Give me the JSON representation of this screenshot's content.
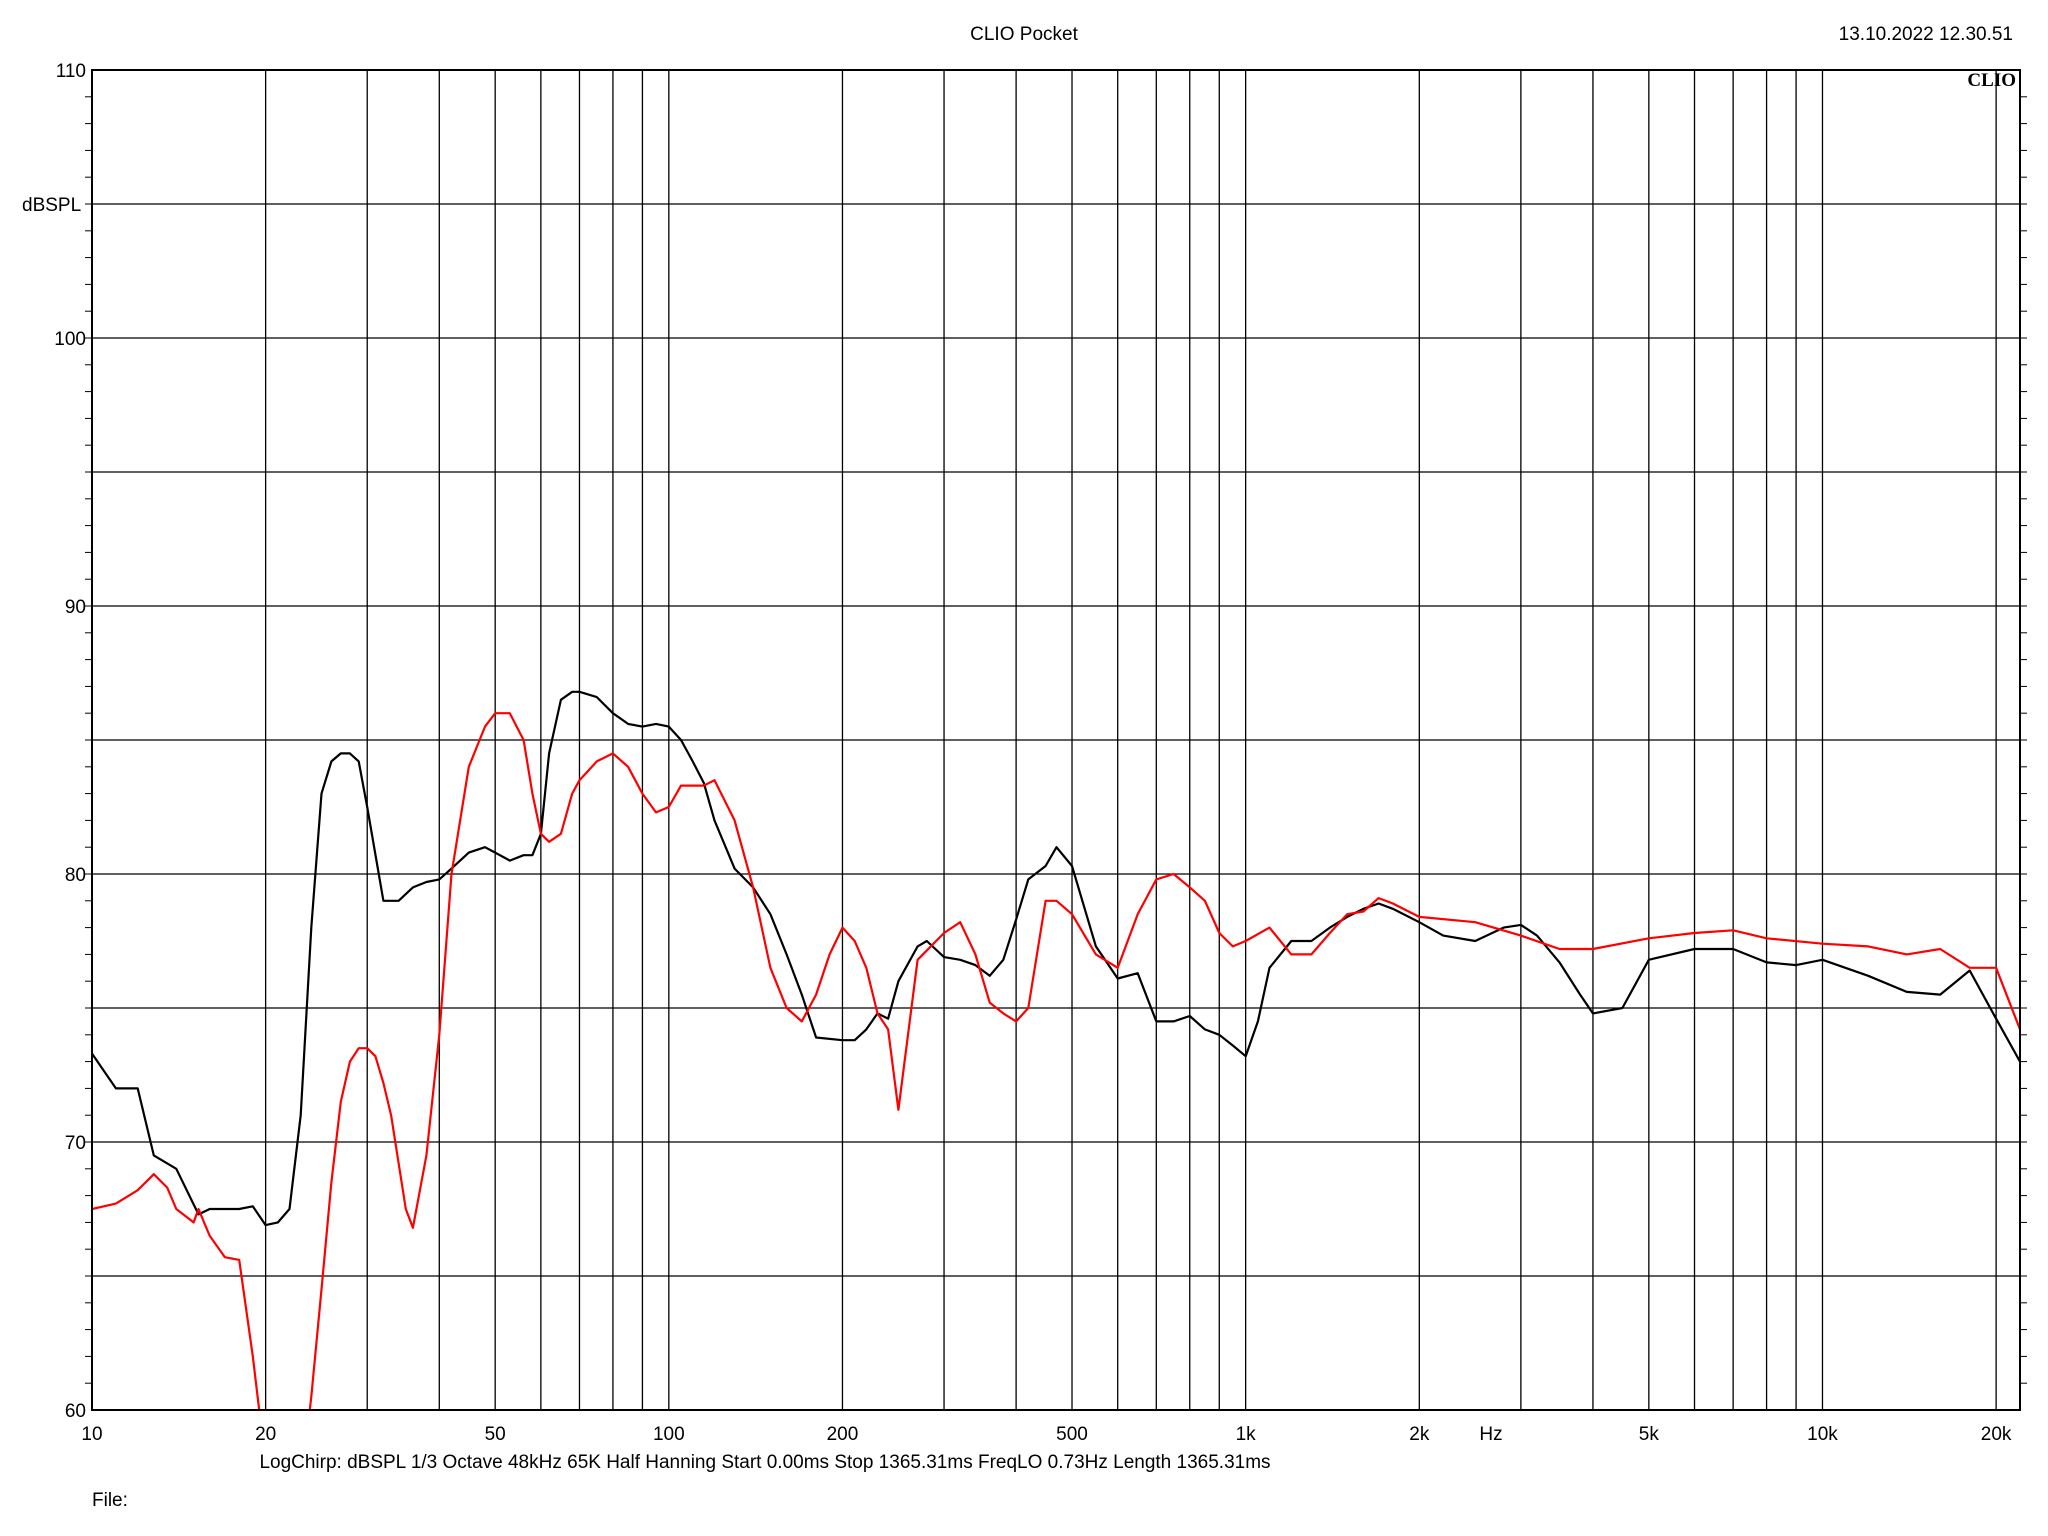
{
  "header": {
    "title": "CLIO Pocket",
    "timestamp": "13.10.2022 12.30.51",
    "brand": "CLIO"
  },
  "footer": {
    "params": "LogChirp:  dBSPL   1/3 Octave   48kHz   65K   Half Hanning   Start 0.00ms    Stop 1365.31ms    FreqLO 0.73Hz    Length 1365.31ms",
    "file_label": "File:"
  },
  "chart_data": {
    "type": "line",
    "title": "",
    "xlabel": "Hz",
    "ylabel": "dBSPL",
    "xscale": "log",
    "xlim": [
      10,
      22000
    ],
    "ylim": [
      60,
      110
    ],
    "grid": true,
    "x_ticks": [
      {
        "value": 10,
        "label": "10"
      },
      {
        "value": 20,
        "label": "20"
      },
      {
        "value": 50,
        "label": "50"
      },
      {
        "value": 100,
        "label": "100"
      },
      {
        "value": 200,
        "label": "200"
      },
      {
        "value": 500,
        "label": "500"
      },
      {
        "value": 1000,
        "label": "1k"
      },
      {
        "value": 2000,
        "label": "2k"
      },
      {
        "value": 5000,
        "label": "5k"
      },
      {
        "value": 10000,
        "label": "10k"
      },
      {
        "value": 20000,
        "label": "20k"
      }
    ],
    "y_ticks": [
      {
        "value": 60,
        "label": "60"
      },
      {
        "value": 70,
        "label": "70"
      },
      {
        "value": 80,
        "label": "80"
      },
      {
        "value": 90,
        "label": "90"
      },
      {
        "value": 100,
        "label": "100"
      },
      {
        "value": 110,
        "label": "110"
      }
    ],
    "series": [
      {
        "color": "#000000",
        "x": [
          10,
          11,
          12,
          12.8,
          14,
          15.3,
          16,
          17,
          18,
          19,
          20,
          21,
          22,
          23,
          24,
          25,
          26,
          27,
          28,
          29,
          30,
          32,
          34,
          36,
          38,
          40,
          42,
          45,
          48,
          50,
          53,
          56,
          58,
          60,
          62,
          65,
          68,
          70,
          75,
          80,
          85,
          90,
          95,
          100,
          105,
          110,
          115,
          120,
          130,
          140,
          150,
          160,
          170,
          180,
          200,
          210,
          220,
          230,
          240,
          250,
          270,
          280,
          300,
          320,
          340,
          360,
          380,
          400,
          420,
          450,
          470,
          500,
          550,
          600,
          650,
          700,
          750,
          800,
          850,
          900,
          950,
          1000,
          1050,
          1100,
          1200,
          1300,
          1400,
          1500,
          1600,
          1700,
          1800,
          2000,
          2200,
          2500,
          2800,
          3000,
          3200,
          3500,
          3800,
          4000,
          4500,
          5000,
          6000,
          7000,
          8000,
          9000,
          10000,
          12000,
          14000,
          16000,
          18000,
          20000,
          22000
        ],
        "y": [
          73.3,
          72.0,
          72.0,
          69.5,
          69.0,
          67.3,
          67.5,
          67.5,
          67.5,
          67.6,
          66.9,
          67.0,
          67.5,
          71.0,
          78.0,
          83.0,
          84.2,
          84.5,
          84.5,
          84.2,
          82.5,
          79.0,
          79.0,
          79.5,
          79.7,
          79.8,
          80.2,
          80.8,
          81.0,
          80.8,
          80.5,
          80.7,
          80.7,
          81.5,
          84.5,
          86.5,
          86.8,
          86.8,
          86.6,
          86.0,
          85.6,
          85.5,
          85.6,
          85.5,
          85.0,
          84.2,
          83.4,
          82.0,
          80.2,
          79.5,
          78.5,
          77.0,
          75.5,
          73.9,
          73.8,
          73.8,
          74.2,
          74.8,
          74.6,
          76.0,
          77.3,
          77.5,
          76.9,
          76.8,
          76.6,
          76.2,
          76.8,
          78.3,
          79.8,
          80.3,
          81.0,
          80.3,
          77.3,
          76.1,
          76.3,
          74.5,
          74.5,
          74.7,
          74.2,
          74.0,
          73.6,
          73.2,
          74.5,
          76.5,
          77.5,
          77.5,
          78.0,
          78.4,
          78.7,
          78.9,
          78.7,
          78.2,
          77.7,
          77.5,
          78.0,
          78.1,
          77.7,
          76.7,
          75.5,
          74.8,
          75.0,
          76.8,
          77.2,
          77.2,
          76.7,
          76.6,
          76.8,
          76.2,
          75.6,
          75.5,
          76.4,
          74.6,
          73.0
        ]
      },
      {
        "color": "#ff0000",
        "x": [
          10,
          11,
          12,
          12.8,
          13.5,
          14,
          15,
          15.3,
          16,
          17,
          18,
          19,
          20,
          21,
          22,
          23,
          24,
          25,
          26,
          27,
          28,
          29,
          30,
          31,
          32,
          33,
          35,
          36,
          38,
          40,
          42,
          45,
          48,
          50,
          53,
          56,
          58,
          60,
          62,
          65,
          68,
          70,
          75,
          80,
          85,
          90,
          95,
          100,
          105,
          110,
          115,
          120,
          130,
          140,
          150,
          160,
          170,
          180,
          190,
          200,
          210,
          220,
          230,
          240,
          250,
          270,
          300,
          320,
          340,
          360,
          380,
          400,
          420,
          450,
          470,
          500,
          550,
          600,
          650,
          700,
          750,
          800,
          850,
          900,
          950,
          1000,
          1100,
          1200,
          1300,
          1400,
          1500,
          1600,
          1700,
          1800,
          2000,
          2500,
          3000,
          3500,
          4000,
          5000,
          6000,
          7000,
          8000,
          10000,
          12000,
          14000,
          16000,
          18000,
          20000,
          22000
        ],
        "y": [
          67.5,
          67.7,
          68.2,
          68.8,
          68.3,
          67.5,
          67.0,
          67.5,
          66.5,
          65.7,
          65.6,
          62.0,
          58.0,
          54.5,
          54.8,
          57.0,
          60.5,
          64.5,
          68.5,
          71.5,
          73.0,
          73.5,
          73.5,
          73.2,
          72.2,
          71.0,
          67.5,
          66.8,
          69.5,
          74.0,
          80.0,
          84.0,
          85.5,
          86.0,
          86.0,
          85.0,
          83.0,
          81.5,
          81.2,
          81.5,
          83.0,
          83.5,
          84.2,
          84.5,
          84.0,
          83.0,
          82.3,
          82.5,
          83.3,
          83.3,
          83.3,
          83.5,
          82.0,
          79.5,
          76.5,
          75.0,
          74.5,
          75.5,
          77.0,
          78.0,
          77.5,
          76.5,
          74.8,
          74.2,
          71.2,
          76.8,
          77.8,
          78.2,
          77.0,
          75.2,
          74.8,
          74.5,
          75.0,
          79.0,
          79.0,
          78.5,
          77.0,
          76.5,
          78.5,
          79.8,
          80.0,
          79.5,
          79.0,
          77.8,
          77.3,
          77.5,
          78.0,
          77.0,
          77.0,
          77.8,
          78.5,
          78.6,
          79.1,
          78.9,
          78.4,
          78.2,
          77.7,
          77.2,
          77.2,
          77.6,
          77.8,
          77.9,
          77.6,
          77.4,
          77.3,
          77.0,
          77.2,
          76.5,
          76.5,
          74.2
        ]
      }
    ]
  }
}
